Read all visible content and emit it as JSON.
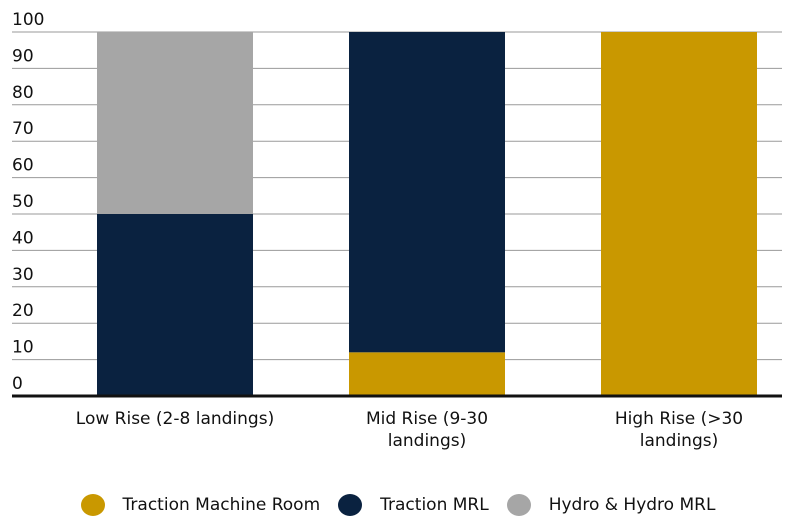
{
  "chart_data": {
    "type": "bar",
    "stacked": true,
    "categories": [
      "Low Rise (2-8 landings)",
      "Mid Rise (9-30 landings)",
      "High Rise (>30 landings)"
    ],
    "category_lines": [
      [
        "Low Rise (2-8 landings)"
      ],
      [
        "Mid Rise (9-30",
        "landings)"
      ],
      [
        "High Rise (>30",
        "landings)"
      ]
    ],
    "series": [
      {
        "name": "Traction Machine Room",
        "color": "#C99800",
        "values": [
          0,
          12,
          100
        ]
      },
      {
        "name": "Traction MRL",
        "color": "#0A2240",
        "values": [
          50,
          88,
          0
        ]
      },
      {
        "name": "Hydro & Hydro MRL",
        "color": "#A6A6A6",
        "values": [
          50,
          0,
          0
        ]
      }
    ],
    "yticks": [
      0,
      10,
      20,
      30,
      40,
      50,
      60,
      70,
      80,
      90,
      100
    ],
    "ylim": [
      0,
      100
    ],
    "grid": true,
    "legend_position": "bottom",
    "title": "",
    "xlabel": "",
    "ylabel": ""
  }
}
